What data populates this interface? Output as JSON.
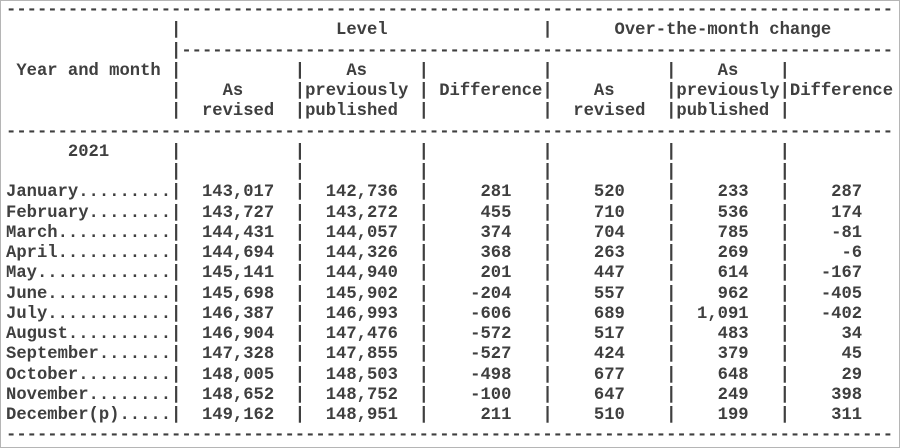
{
  "meta": {
    "background_color": "#ffffff",
    "text_color": "#3f3f3f",
    "border_color": "#b5b5b5"
  },
  "table": {
    "stub_header": "Year and month",
    "level_section_title": "Level",
    "change_section_title": "Over-the-month change",
    "subcolumns": {
      "revised_line1": "As",
      "revised_line2": "revised",
      "published_line1": "As",
      "published_line2": "previously",
      "published_line3": "published",
      "difference": "Difference"
    },
    "year_label": "2021",
    "rows": [
      {
        "month": "January",
        "level_revised": "143,017",
        "level_published": "142,736",
        "level_difference": "281",
        "change_revised": "520",
        "change_published": "233",
        "change_difference": "287"
      },
      {
        "month": "February",
        "level_revised": "143,727",
        "level_published": "143,272",
        "level_difference": "455",
        "change_revised": "710",
        "change_published": "536",
        "change_difference": "174"
      },
      {
        "month": "March",
        "level_revised": "144,431",
        "level_published": "144,057",
        "level_difference": "374",
        "change_revised": "704",
        "change_published": "785",
        "change_difference": "-81"
      },
      {
        "month": "April",
        "level_revised": "144,694",
        "level_published": "144,326",
        "level_difference": "368",
        "change_revised": "263",
        "change_published": "269",
        "change_difference": "-6"
      },
      {
        "month": "May",
        "level_revised": "145,141",
        "level_published": "144,940",
        "level_difference": "201",
        "change_revised": "447",
        "change_published": "614",
        "change_difference": "-167"
      },
      {
        "month": "June",
        "level_revised": "145,698",
        "level_published": "145,902",
        "level_difference": "-204",
        "change_revised": "557",
        "change_published": "962",
        "change_difference": "-405"
      },
      {
        "month": "July",
        "level_revised": "146,387",
        "level_published": "146,993",
        "level_difference": "-606",
        "change_revised": "689",
        "change_published": "1,091",
        "change_difference": "-402"
      },
      {
        "month": "August",
        "level_revised": "146,904",
        "level_published": "147,476",
        "level_difference": "-572",
        "change_revised": "517",
        "change_published": "483",
        "change_difference": "34"
      },
      {
        "month": "September",
        "level_revised": "147,328",
        "level_published": "147,855",
        "level_difference": "-527",
        "change_revised": "424",
        "change_published": "379",
        "change_difference": "45"
      },
      {
        "month": "October",
        "level_revised": "148,005",
        "level_published": "148,503",
        "level_difference": "-498",
        "change_revised": "677",
        "change_published": "648",
        "change_difference": "29"
      },
      {
        "month": "November",
        "level_revised": "148,652",
        "level_published": "148,752",
        "level_difference": "-100",
        "change_revised": "647",
        "change_published": "249",
        "change_difference": "398"
      },
      {
        "month": "December(p)",
        "level_revised": "149,162",
        "level_published": "148,951",
        "level_difference": "211",
        "change_revised": "510",
        "change_published": "199",
        "change_difference": "311"
      }
    ]
  }
}
